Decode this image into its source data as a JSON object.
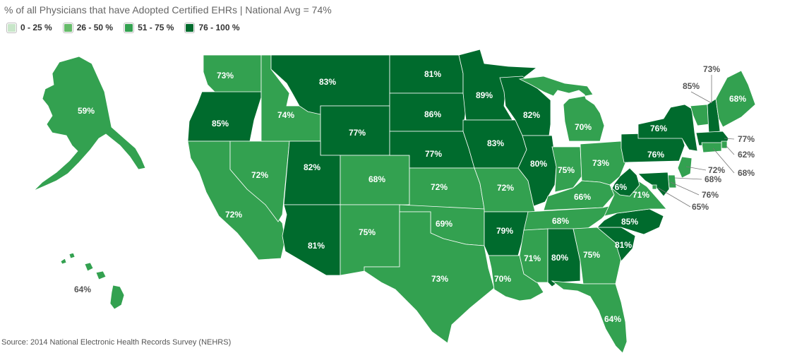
{
  "title": "% of all Physicians that have Adopted Certified EHRs | National Avg = 74%",
  "legend": [
    {
      "label": "0 - 25 %",
      "color": "#c8e6c9"
    },
    {
      "label": "26 - 50 %",
      "color": "#66bb6a"
    },
    {
      "label": "51 - 75 %",
      "color": "#33a150"
    },
    {
      "label": "76 - 100 %",
      "color": "#006b2d"
    }
  ],
  "source": "Source: 2014 National Electronic Health Records Survey (NEHRS)",
  "colors": {
    "mid": "#33a150",
    "high": "#006b2d",
    "border": "#ffffff",
    "callout_text": "#555555",
    "inside_text": "#ffffff"
  },
  "states": [
    {
      "code": "AK",
      "value": "59%",
      "tier": "mid"
    },
    {
      "code": "HI",
      "value": "64%",
      "tier": "mid"
    },
    {
      "code": "WA",
      "value": "73%",
      "tier": "mid"
    },
    {
      "code": "OR",
      "value": "85%",
      "tier": "high"
    },
    {
      "code": "CA",
      "value": "72%",
      "tier": "mid"
    },
    {
      "code": "NV",
      "value": "72%",
      "tier": "mid"
    },
    {
      "code": "ID",
      "value": "74%",
      "tier": "mid"
    },
    {
      "code": "MT",
      "value": "83%",
      "tier": "high"
    },
    {
      "code": "WY",
      "value": "77%",
      "tier": "high"
    },
    {
      "code": "UT",
      "value": "82%",
      "tier": "high"
    },
    {
      "code": "AZ",
      "value": "81%",
      "tier": "high"
    },
    {
      "code": "CO",
      "value": "68%",
      "tier": "mid"
    },
    {
      "code": "NM",
      "value": "75%",
      "tier": "mid"
    },
    {
      "code": "ND",
      "value": "81%",
      "tier": "high"
    },
    {
      "code": "SD",
      "value": "86%",
      "tier": "high"
    },
    {
      "code": "NE",
      "value": "77%",
      "tier": "high"
    },
    {
      "code": "KS",
      "value": "72%",
      "tier": "mid"
    },
    {
      "code": "OK",
      "value": "69%",
      "tier": "mid"
    },
    {
      "code": "TX",
      "value": "73%",
      "tier": "mid"
    },
    {
      "code": "MN",
      "value": "89%",
      "tier": "high"
    },
    {
      "code": "IA",
      "value": "83%",
      "tier": "high"
    },
    {
      "code": "MO",
      "value": "72%",
      "tier": "mid"
    },
    {
      "code": "AR",
      "value": "79%",
      "tier": "high"
    },
    {
      "code": "LA",
      "value": "70%",
      "tier": "mid"
    },
    {
      "code": "WI",
      "value": "82%",
      "tier": "high"
    },
    {
      "code": "IL",
      "value": "80%",
      "tier": "high"
    },
    {
      "code": "MI",
      "value": "70%",
      "tier": "mid"
    },
    {
      "code": "IN",
      "value": "75%",
      "tier": "mid"
    },
    {
      "code": "OH",
      "value": "73%",
      "tier": "mid"
    },
    {
      "code": "KY",
      "value": "66%",
      "tier": "mid"
    },
    {
      "code": "TN",
      "value": "68%",
      "tier": "mid"
    },
    {
      "code": "MS",
      "value": "71%",
      "tier": "mid"
    },
    {
      "code": "AL",
      "value": "80%",
      "tier": "high"
    },
    {
      "code": "GA",
      "value": "75%",
      "tier": "mid"
    },
    {
      "code": "FL",
      "value": "64%",
      "tier": "mid"
    },
    {
      "code": "SC",
      "value": "81%",
      "tier": "high"
    },
    {
      "code": "NC",
      "value": "85%",
      "tier": "high"
    },
    {
      "code": "VA",
      "value": "71%",
      "tier": "mid"
    },
    {
      "code": "WV",
      "value": "76%",
      "tier": "high"
    },
    {
      "code": "PA",
      "value": "76%",
      "tier": "high"
    },
    {
      "code": "NY",
      "value": "76%",
      "tier": "high"
    },
    {
      "code": "VT",
      "value": "73%",
      "tier": "mid"
    },
    {
      "code": "NH",
      "value": "85%",
      "tier": "high"
    },
    {
      "code": "ME",
      "value": "68%",
      "tier": "mid"
    },
    {
      "code": "MA",
      "value": "77%",
      "tier": "high"
    },
    {
      "code": "RI",
      "value": "62%",
      "tier": "mid"
    },
    {
      "code": "CT",
      "value": "68%",
      "tier": "mid"
    },
    {
      "code": "NJ",
      "value": "72%",
      "tier": "mid"
    },
    {
      "code": "DE",
      "value": "68%",
      "tier": "mid"
    },
    {
      "code": "MD",
      "value": "76%",
      "tier": "high"
    },
    {
      "code": "DC",
      "value": "65%",
      "tier": "mid"
    }
  ]
}
